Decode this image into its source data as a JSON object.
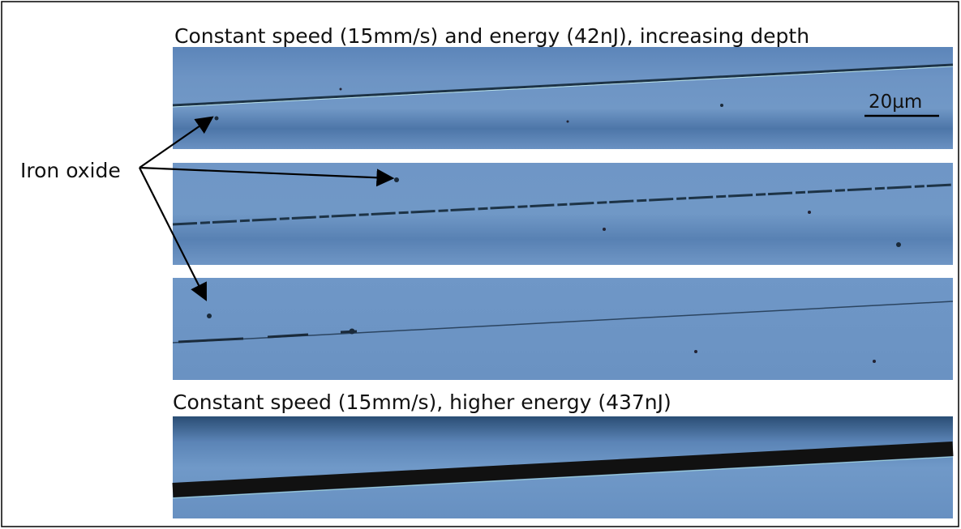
{
  "figure": {
    "captions": [
      "Constant speed (15mm/s) and energy (42nJ), increasing depth",
      "Constant speed (15mm/s), higher energy (437nJ)"
    ],
    "annotation": "Iron oxide",
    "scale_bar": "20µm"
  }
}
